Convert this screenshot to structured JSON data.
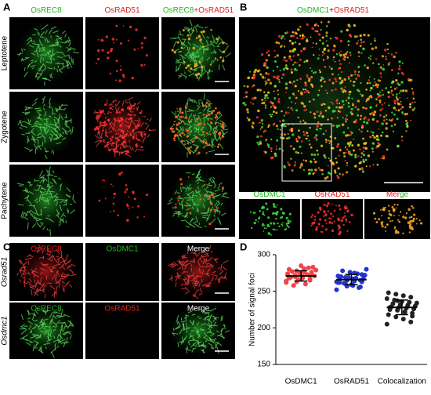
{
  "panel_labels": [
    "A",
    "B",
    "C",
    "D"
  ],
  "panel_a": {
    "columns": [
      {
        "parts": [
          {
            "text": "OsREC8",
            "color": "#1fb81f"
          }
        ]
      },
      {
        "parts": [
          {
            "text": "OsRAD51",
            "color": "#e02020"
          }
        ]
      },
      {
        "parts": [
          {
            "text": "OsREC8",
            "color": "#1fb81f"
          },
          {
            "text": "+OsRAD51",
            "color": "#e02020"
          }
        ]
      }
    ],
    "rows": [
      "Leptotene",
      "Zygotene",
      "Pachytene"
    ]
  },
  "panel_b": {
    "title": {
      "parts": [
        {
          "text": "OsDMC1",
          "color": "#1fb81f"
        },
        {
          "text": "+",
          "color": "#222222"
        },
        {
          "text": "OsRAD51",
          "color": "#e02020"
        }
      ]
    },
    "sub_labels": [
      {
        "parts": [
          {
            "text": "OsDMC1",
            "color": "#1fb81f"
          }
        ]
      },
      {
        "parts": [
          {
            "text": "OsRAD51",
            "color": "#e02020"
          }
        ]
      },
      {
        "parts": [
          {
            "text": "Mer",
            "color": "#e02020"
          },
          {
            "text": "ge",
            "color": "#1fb81f"
          }
        ]
      }
    ]
  },
  "panel_c": {
    "rows": [
      {
        "label": "Osrad51",
        "cells": [
          {
            "text": "OsREC8",
            "color": "#e02020"
          },
          {
            "text": "OsDMC1",
            "color": "#1fb81f"
          },
          {
            "text": "Merge",
            "color": "#ffffff"
          }
        ]
      },
      {
        "label": "Osdmc1",
        "cells": [
          {
            "text": "OsREC8",
            "color": "#1fb81f"
          },
          {
            "text": "OsRAD51",
            "color": "#e02020"
          },
          {
            "text": "Merge",
            "color": "#ffffff"
          }
        ]
      }
    ]
  },
  "chart_data": {
    "type": "strip",
    "ylabel": "Number of signal foci",
    "categories": [
      "OsDMC1",
      "OsRAD51",
      "Colocalization"
    ],
    "colors": [
      "#f04545",
      "#2233cc",
      "#222222"
    ],
    "values": [
      [
        262,
        265,
        268,
        270,
        272,
        274,
        276,
        278,
        280,
        283,
        260,
        266,
        269,
        271,
        273,
        275,
        277,
        279,
        282,
        285,
        258,
        264,
        267,
        270,
        272,
        274,
        276,
        281,
        263,
        268
      ],
      [
        252,
        256,
        258,
        260,
        262,
        263,
        264,
        265,
        266,
        267,
        268,
        269,
        270,
        272,
        274,
        276,
        278,
        280,
        255,
        259,
        261,
        263,
        265,
        267,
        269,
        271,
        273,
        275,
        257,
        262
      ],
      [
        205,
        208,
        212,
        215,
        218,
        220,
        222,
        224,
        225,
        226,
        227,
        228,
        229,
        230,
        231,
        232,
        233,
        234,
        235,
        236,
        238,
        240,
        242,
        244,
        246,
        248,
        216,
        221,
        237,
        228
      ]
    ],
    "means": [
      271,
      266,
      228
    ],
    "errors": [
      7,
      7,
      10
    ],
    "ylim": [
      150,
      300
    ],
    "yticks": [
      150,
      200,
      250,
      300
    ]
  }
}
